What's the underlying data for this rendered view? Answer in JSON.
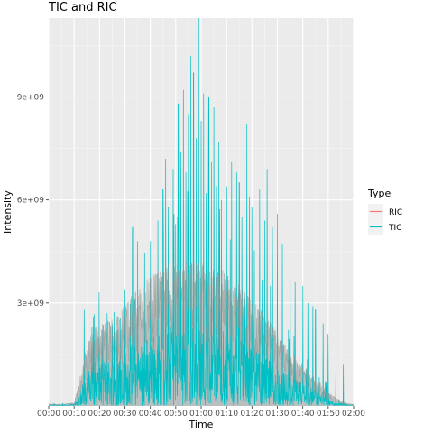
{
  "chart_data": {
    "type": "line",
    "title": "TIC and RIC",
    "xlabel": "Time",
    "ylabel": "Intensity",
    "x_ticks": [
      "00:00",
      "00:10",
      "00:20",
      "00:30",
      "00:40",
      "00:50",
      "01:00",
      "01:10",
      "01:20",
      "01:30",
      "01:40",
      "01:50",
      "02:00"
    ],
    "x_tick_minutes": [
      0,
      10,
      20,
      30,
      40,
      50,
      60,
      70,
      80,
      90,
      100,
      110,
      120
    ],
    "xlim_minutes": [
      0,
      120
    ],
    "y_ticks": [
      {
        "value": 3000000000,
        "label": "3e+09"
      },
      {
        "value": 6000000000,
        "label": "6e+09"
      },
      {
        "value": 9000000000,
        "label": "9e+09"
      }
    ],
    "ylim": [
      0,
      11300000000
    ],
    "grid": true,
    "legend": {
      "title": "Type",
      "position": "right"
    },
    "series": [
      {
        "name": "RIC",
        "color": "#F8766D",
        "envelope_minutes": [
          0,
          5,
          10,
          12,
          14,
          16,
          18,
          20,
          22,
          25,
          28,
          30,
          33,
          35,
          38,
          40,
          43,
          45,
          48,
          50,
          53,
          55,
          58,
          60,
          63,
          65,
          68,
          70,
          73,
          75,
          78,
          80,
          83,
          85,
          88,
          90,
          93,
          95,
          98,
          100,
          103,
          105,
          108,
          110,
          113,
          115,
          118,
          120
        ],
        "envelope_values": [
          60000000,
          60000000,
          100000000,
          700000000,
          1500000000,
          2000000000,
          2400000000,
          2300000000,
          2500000000,
          2600000000,
          2800000000,
          3000000000,
          3300000000,
          3400000000,
          3700000000,
          3800000000,
          4000000000,
          4100000000,
          4200000000,
          4250000000,
          4300000000,
          4300000000,
          4250000000,
          4200000000,
          4200000000,
          4100000000,
          4000000000,
          3900000000,
          3700000000,
          3500000000,
          3300000000,
          3100000000,
          2900000000,
          2600000000,
          2400000000,
          2100000000,
          1800000000,
          1600000000,
          1400000000,
          1200000000,
          1000000000,
          800000000,
          600000000,
          400000000,
          250000000,
          150000000,
          80000000,
          50000000
        ]
      },
      {
        "name": "TIC",
        "color": "#00BFC4",
        "peaks_minutes": [
          14,
          17,
          19,
          21,
          23,
          25,
          27,
          30,
          33,
          34,
          35,
          40,
          43,
          45,
          46,
          47,
          49,
          50,
          51,
          52,
          53,
          54,
          55,
          56,
          57,
          58,
          59,
          60,
          61,
          62,
          63,
          64,
          65,
          66,
          67,
          68,
          70,
          72,
          74,
          75,
          76,
          78,
          79,
          80,
          83,
          85,
          86,
          88,
          90,
          92,
          95,
          97,
          100,
          102,
          104,
          105,
          108,
          110,
          113,
          116
        ],
        "peaks_values": [
          2800000000,
          2300000000,
          2600000000,
          2200000000,
          2700000000,
          2400000000,
          2200000000,
          3400000000,
          5200000000,
          3100000000,
          4800000000,
          4800000000,
          5400000000,
          6300000000,
          7200000000,
          5800000000,
          6900000000,
          5300000000,
          8800000000,
          7400000000,
          9200000000,
          6800000000,
          8500000000,
          10200000000,
          9700000000,
          7800000000,
          11300000000,
          8300000000,
          9100000000,
          6200000000,
          9000000000,
          7100000000,
          8700000000,
          6400000000,
          7700000000,
          6000000000,
          6400000000,
          7100000000,
          6800000000,
          6500000000,
          5500000000,
          8200000000,
          6100000000,
          5800000000,
          6300000000,
          5400000000,
          6900000000,
          5200000000,
          5600000000,
          4700000000,
          4400000000,
          3600000000,
          3500000000,
          3000000000,
          2900000000,
          2800000000,
          2400000000,
          2100000000,
          1000000000,
          1200000000
        ]
      }
    ]
  }
}
